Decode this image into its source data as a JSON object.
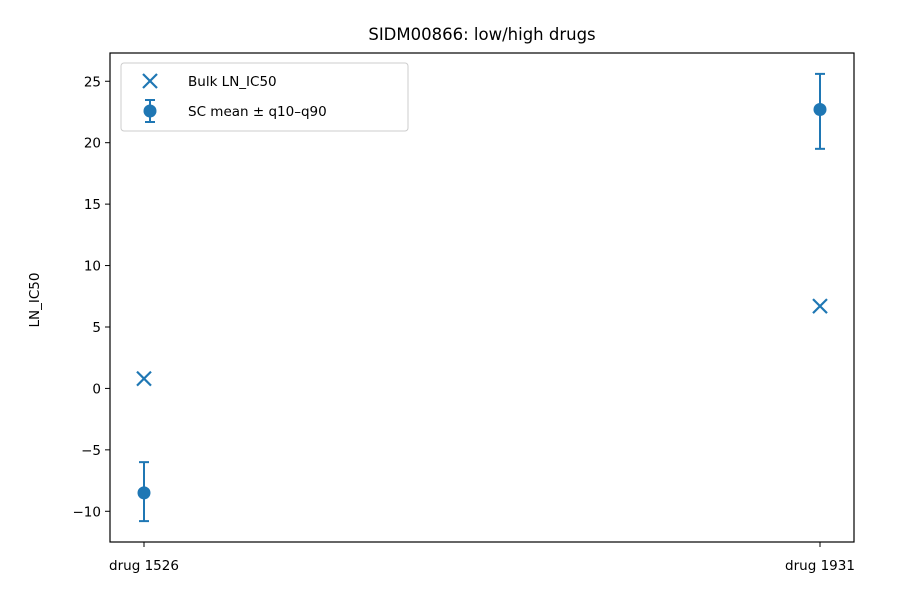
{
  "chart_data": {
    "type": "scatter",
    "title": "SIDM00866: low/high drugs",
    "xlabel": "",
    "ylabel": "LN_IC50",
    "categories": [
      "drug 1526",
      "drug 1931"
    ],
    "ylim": [
      -12.5,
      27.3
    ],
    "yticks": [
      -10,
      -5,
      0,
      5,
      10,
      15,
      20,
      25
    ],
    "ytick_labels": [
      "−10",
      "−5",
      "0",
      "5",
      "10",
      "15",
      "20",
      "25"
    ],
    "grid": false,
    "legend_position": "top-left",
    "series": [
      {
        "name": "Bulk LN_IC50",
        "marker": "x",
        "color": "#1f77b4",
        "values": [
          0.8,
          6.7
        ]
      },
      {
        "name": "SC mean ± q10–q90",
        "marker": "circle",
        "color": "#1f77b4",
        "values": [
          -8.5,
          22.7
        ],
        "q10": [
          -10.8,
          19.5
        ],
        "q90": [
          -6.0,
          25.6
        ]
      }
    ]
  }
}
